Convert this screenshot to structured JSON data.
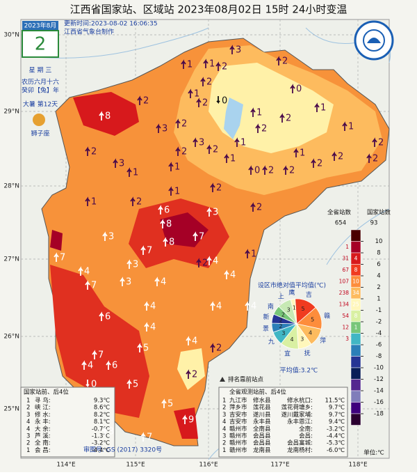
{
  "header": {
    "title": "江西省国家站、区域站   2023年08月02日 15时   24小时变温",
    "updated": "更新时间:2023-08-02 16:06:35",
    "producer": "江西省气象台制作"
  },
  "calendar": {
    "month": "2023年8月",
    "day": "2",
    "weekday": "星 期 三",
    "lunar": "农历六月十六",
    "year": "癸卯【兔】年",
    "term": "大暑 第12天",
    "zodiac": "狮子座"
  },
  "lat_labels": [
    "30°N",
    "29°N",
    "28°N",
    "27°N",
    "26°N",
    "25°N"
  ],
  "lon_labels": [
    "114°E",
    "115°E",
    "116°E",
    "117°E",
    "118°E"
  ],
  "stations": [
    {
      "value": 8,
      "dir": "up",
      "color": "#ffffff"
    },
    {
      "value": 2,
      "dir": "up",
      "color": "#4a0a4a"
    },
    {
      "value": 2,
      "dir": "up",
      "color": "#4a0a4a"
    },
    {
      "value": 3,
      "dir": "up",
      "color": "#4a0a4a"
    },
    {
      "value": 1,
      "dir": "up",
      "color": "#4a0a4a"
    },
    {
      "value": 3,
      "dir": "up",
      "color": "#4a0a4a"
    },
    {
      "value": 2,
      "dir": "up",
      "color": "#4a0a4a"
    },
    {
      "value": 1,
      "dir": "up",
      "color": "#4a0a4a"
    },
    {
      "value": 1,
      "dir": "up",
      "color": "#4a0a4a"
    },
    {
      "value": 2,
      "dir": "up",
      "color": "#4a0a4a"
    },
    {
      "value": 3,
      "dir": "up",
      "color": "#4a0a4a"
    },
    {
      "value": 2,
      "dir": "up",
      "color": "#4a0a4a"
    },
    {
      "value": 2,
      "dir": "up",
      "color": "#4a0a4a"
    },
    {
      "value": 1,
      "dir": "up",
      "color": "#4a0a4a"
    },
    {
      "value": 0,
      "dir": "down",
      "color": "#111111"
    },
    {
      "value": 2,
      "dir": "up",
      "color": "#4a0a4a"
    },
    {
      "value": 0,
      "dir": "up",
      "color": "#4a0a4a"
    },
    {
      "value": 2,
      "dir": "up",
      "color": "#4a0a4a"
    },
    {
      "value": 1,
      "dir": "up",
      "color": "#4a0a4a"
    },
    {
      "value": 2,
      "dir": "up",
      "color": "#4a0a4a"
    },
    {
      "value": 1,
      "dir": "up",
      "color": "#4a0a4a"
    },
    {
      "value": 3,
      "dir": "up",
      "color": "#4a0a4a"
    },
    {
      "value": 2,
      "dir": "up",
      "color": "#4a0a4a"
    },
    {
      "value": 1,
      "dir": "up",
      "color": "#4a0a4a"
    },
    {
      "value": 2,
      "dir": "up",
      "color": "#4a0a4a"
    },
    {
      "value": 1,
      "dir": "up",
      "color": "#4a0a4a"
    },
    {
      "value": 0,
      "dir": "up",
      "color": "#4a0a4a"
    },
    {
      "value": 2,
      "dir": "up",
      "color": "#4a0a4a"
    },
    {
      "value": 2,
      "dir": "up",
      "color": "#4a0a4a"
    },
    {
      "value": 1,
      "dir": "up",
      "color": "#4a0a4a"
    },
    {
      "value": 2,
      "dir": "up",
      "color": "#4a0a4a"
    },
    {
      "value": 2,
      "dir": "up",
      "color": "#4a0a4a"
    },
    {
      "value": 2,
      "dir": "up",
      "color": "#4a0a4a"
    },
    {
      "value": 1,
      "dir": "up",
      "color": "#4a0a4a"
    },
    {
      "value": 1,
      "dir": "up",
      "color": "#4a0a4a"
    },
    {
      "value": 2,
      "dir": "up",
      "color": "#4a0a4a"
    },
    {
      "value": 2,
      "dir": "up",
      "color": "#4a0a4a"
    },
    {
      "value": 2,
      "dir": "up",
      "color": "#4a0a4a"
    },
    {
      "value": 1,
      "dir": "up",
      "color": "#4a0a4a"
    },
    {
      "value": 2,
      "dir": "up",
      "color": "#4a0a4a"
    },
    {
      "value": 1,
      "dir": "up",
      "color": "#4a0a4a"
    },
    {
      "value": 6,
      "dir": "up",
      "color": "#ffffff"
    },
    {
      "value": 8,
      "dir": "up",
      "color": "#ffffff"
    },
    {
      "value": 8,
      "dir": "up",
      "color": "#ffffff"
    },
    {
      "value": 7,
      "dir": "up",
      "color": "#ffffff"
    },
    {
      "value": 3,
      "dir": "up",
      "color": "#ffffff"
    },
    {
      "value": 7,
      "dir": "up",
      "color": "#ffffff"
    },
    {
      "value": 3,
      "dir": "up",
      "color": "#ffffff"
    },
    {
      "value": 7,
      "dir": "up",
      "color": "#ffffff"
    },
    {
      "value": 4,
      "dir": "up",
      "color": "#ffffff"
    },
    {
      "value": 7,
      "dir": "up",
      "color": "#ffffff"
    },
    {
      "value": 3,
      "dir": "up",
      "color": "#ffffff"
    },
    {
      "value": 3,
      "dir": "up",
      "color": "#ffffff"
    },
    {
      "value": 4,
      "dir": "up",
      "color": "#ffffff"
    },
    {
      "value": 2,
      "dir": "up",
      "color": "#4a0a4a"
    },
    {
      "value": 4,
      "dir": "up",
      "color": "#ffffff"
    },
    {
      "value": 1,
      "dir": "up",
      "color": "#4a0a4a"
    },
    {
      "value": 4,
      "dir": "up",
      "color": "#ffffff"
    },
    {
      "value": 4,
      "dir": "up",
      "color": "#ffffff"
    },
    {
      "value": 4,
      "dir": "up",
      "color": "#ffffff"
    },
    {
      "value": 4,
      "dir": "up",
      "color": "#ffffff"
    },
    {
      "value": 6,
      "dir": "up",
      "color": "#ffffff"
    },
    {
      "value": 4,
      "dir": "up",
      "color": "#ffffff"
    },
    {
      "value": 5,
      "dir": "up",
      "color": "#ffffff"
    },
    {
      "value": 4,
      "dir": "up",
      "color": "#ffffff"
    },
    {
      "value": 2,
      "dir": "up",
      "color": "#4a0a4a"
    },
    {
      "value": 7,
      "dir": "up",
      "color": "#ffffff"
    },
    {
      "value": 4,
      "dir": "up",
      "color": "#ffffff"
    },
    {
      "value": 6,
      "dir": "up",
      "color": "#ffffff"
    },
    {
      "value": 5,
      "dir": "up",
      "color": "#ffffff"
    },
    {
      "value": 0,
      "dir": "down",
      "color": "#ffffff"
    },
    {
      "value": 5,
      "dir": "up",
      "color": "#ffffff"
    },
    {
      "value": 2,
      "dir": "up",
      "color": "#4a0a4a"
    },
    {
      "value": 3,
      "dir": "up",
      "color": "#ffffff"
    },
    {
      "value": 7,
      "dir": "up",
      "color": "#ffffff"
    },
    {
      "value": 9,
      "dir": "up",
      "color": "#ffffff"
    }
  ],
  "legend": {
    "header_all": "全省站数",
    "header_nat": "国家站数",
    "total_all": "654",
    "total_nat": "93",
    "unit": "单位:℃",
    "ticks": [
      10,
      8,
      6,
      4,
      2,
      1,
      -1,
      -2,
      -4,
      -6,
      -8,
      -10,
      -12,
      -14,
      -16,
      -18
    ],
    "colors": [
      "#4b0000",
      "#a50026",
      "#d7191c",
      "#f03b20",
      "#fd8d3c",
      "#fdbb5e",
      "#fff7bc",
      "#d9f0a3",
      "#78c679",
      "#41b6c4",
      "#2c7fb8",
      "#253494",
      "#081d58",
      "#54278f",
      "#807dba",
      "#3f007d",
      "#2b0030"
    ],
    "counts_all": [
      null,
      "1",
      "31",
      "67",
      "107",
      "238",
      "134",
      "54",
      "12",
      "3",
      null,
      null,
      null,
      null,
      null,
      null,
      null
    ],
    "counts_nat": [
      null,
      null,
      "4",
      "8",
      "10",
      "34",
      "25",
      "8",
      "1",
      null,
      null,
      null,
      null,
      null,
      null,
      null,
      null
    ]
  },
  "pie": {
    "title": "设区市绝对值平均值(℃)",
    "average": "平均值:3.2℃",
    "slices": [
      {
        "name": "鹰",
        "value": 1,
        "color": "#fff7bc"
      },
      {
        "name": "吉",
        "value": 5,
        "color": "#f03b20"
      },
      {
        "name": "赣",
        "value": 5,
        "color": "#fd8d3c"
      },
      {
        "name": "萍",
        "value": 4,
        "color": "#fdbb5e"
      },
      {
        "name": "抚",
        "value": 3,
        "color": "#fff7bc"
      },
      {
        "name": "宜",
        "value": 4,
        "color": "#d9f0a3"
      },
      {
        "name": "九",
        "value": 3,
        "color": "#41b6c4"
      },
      {
        "name": "景",
        "value": 2,
        "color": "#2c7fb8"
      },
      {
        "name": "新",
        "value": 2,
        "color": "#253494"
      },
      {
        "name": "南",
        "value": 2,
        "color": "#78c679"
      },
      {
        "name": "上",
        "value": 3,
        "color": "#c7e9b4"
      }
    ]
  },
  "marker_note": "排名靠前站点",
  "rank_nat": {
    "title": "国家站前、后4位",
    "rows": [
      [
        "1",
        "寻 乌:",
        "9.3℃"
      ],
      [
        "2",
        "峡 江:",
        "8.6℃"
      ],
      [
        "3",
        "修 水:",
        "8.2℃"
      ],
      [
        "4",
        "永 丰:",
        "8.1℃"
      ],
      [
        "4",
        "大 余:",
        "-0.7℃"
      ],
      [
        "3",
        "芦 溪:",
        "-1.3℃"
      ],
      [
        "2",
        "全 南:",
        "-3.2℃"
      ],
      [
        "1",
        "会 昌:",
        "-4.4℃"
      ]
    ]
  },
  "rank_all": {
    "title": "全省观测站前、后4位",
    "rows": [
      [
        "1",
        "九江市",
        "修水县",
        "修水杭口:",
        "11.5℃"
      ],
      [
        "2",
        "萍乡市",
        "莲花县",
        "莲花荷塘乡:",
        "9.7℃"
      ],
      [
        "3",
        "吉安市",
        "遂川县",
        "遂川戴家埔:",
        "9.7℃"
      ],
      [
        "4",
        "吉安市",
        "永丰县",
        "永丰恩江:",
        "9.4℃"
      ],
      [
        "4",
        "赣州市",
        "全南县",
        "全南:",
        "-3.2℃"
      ],
      [
        "3",
        "赣州市",
        "会昌县",
        "会昌:",
        "-4.4℃"
      ],
      [
        "2",
        "赣州市",
        "会昌县",
        "会昌富城:",
        "-5.3℃"
      ],
      [
        "1",
        "赣州市",
        "龙南县",
        "龙南杨村:",
        "-6.0℃"
      ]
    ]
  },
  "review": "审图号: GS (2017) 3320号"
}
